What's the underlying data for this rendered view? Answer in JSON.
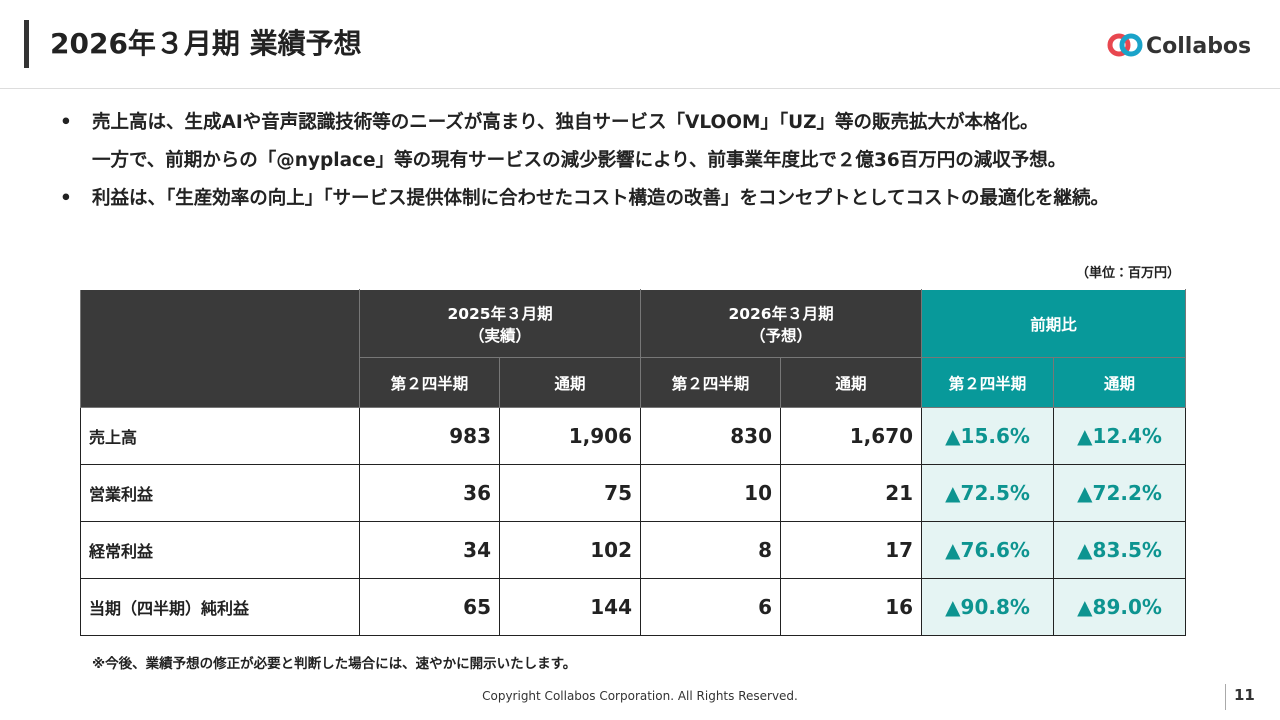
{
  "header": {
    "title": "2026年３月期 業績予想",
    "logo": "Collabos"
  },
  "bullets": [
    {
      "lines": [
        "売上高は、生成AIや音声認識技術等のニーズが高まり、独自サービス「VLOOM」「UZ」等の販売拡大が本格化。",
        "一方で、前期からの「@nyplace」等の現有サービスの減少影響により、前事業年度比で２億36百万円の減収予想。"
      ]
    },
    {
      "lines": [
        "利益は、「生産効率の向上」「サービス提供体制に合わせたコスト構造の改善」をコンセプトとしてコストの最適化を継続。"
      ]
    }
  ],
  "unit": "（単位：百万円）",
  "table": {
    "groups": [
      {
        "lines": [
          "2025年３月期",
          "（実績）"
        ]
      },
      {
        "lines": [
          "2026年３月期",
          "（予想）"
        ]
      },
      {
        "lines": [
          "前期比"
        ]
      }
    ],
    "subheaders": [
      "第２四半期",
      "通期",
      "第２四半期",
      "通期",
      "第２四半期",
      "通期"
    ],
    "rows": [
      [
        "売上高",
        "983",
        "1,906",
        "830",
        "1,670",
        "▲15.6%",
        "▲12.4%"
      ],
      [
        "営業利益",
        "36",
        "75",
        "10",
        "21",
        "▲72.5%",
        "▲72.2%"
      ],
      [
        "経常利益",
        "34",
        "102",
        "8",
        "17",
        "▲76.6%",
        "▲83.5%"
      ],
      [
        "当期（四半期）純利益",
        "65",
        "144",
        "6",
        "16",
        "▲90.8%",
        "▲89.0%"
      ]
    ]
  },
  "note": "※今後、業績予想の修正が必要と判断した場合には、速やかに開示いたします。",
  "footer": {
    "copyright": "Copyright Collabos Corporation. All Rights Reserved.",
    "page": "11"
  }
}
